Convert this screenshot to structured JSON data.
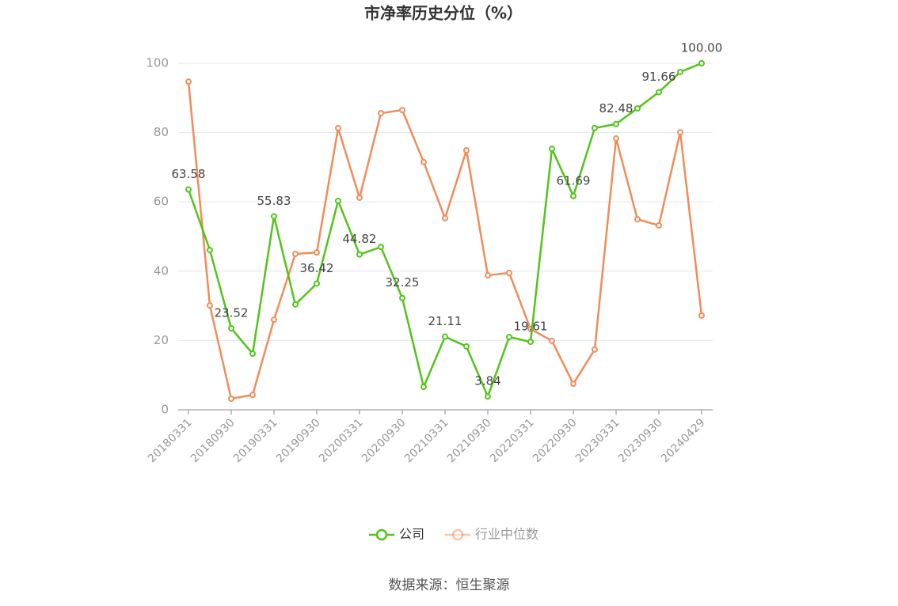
{
  "chart_data": {
    "type": "line",
    "title": "市净率历史分位（%）",
    "categories": [
      "20180331",
      null,
      "20180930",
      null,
      "20190331",
      null,
      "20190930",
      null,
      "20200331",
      null,
      "20200930",
      null,
      "20210331",
      null,
      "20210930",
      null,
      "20220331",
      null,
      "20220930",
      null,
      "20230331",
      null,
      "20230930",
      null,
      "20240429"
    ],
    "series": [
      {
        "name": "公司",
        "color": "#52c41a",
        "values": [
          63.58,
          46.1,
          23.52,
          16.2,
          55.83,
          30.4,
          36.42,
          60.3,
          44.82,
          47.0,
          32.25,
          6.6,
          21.11,
          18.3,
          3.84,
          21.0,
          19.61,
          75.3,
          61.69,
          81.3,
          82.48,
          87.0,
          91.66,
          97.5,
          100
        ],
        "value_labels": [
          "63.58",
          null,
          "23.52",
          null,
          "55.83",
          null,
          "36.42",
          null,
          "44.82",
          null,
          "32.25",
          null,
          "21.11",
          null,
          "3.84",
          null,
          "19.61",
          null,
          "61.69",
          null,
          "82.48",
          null,
          "91.66",
          null,
          "100.00"
        ]
      },
      {
        "name": "行业中位数",
        "color": "#f08c5a",
        "values": [
          94.7,
          30.1,
          3.2,
          4.3,
          26.0,
          45.0,
          45.4,
          81.3,
          61.2,
          85.6,
          86.5,
          71.5,
          55.3,
          74.9,
          38.8,
          39.5,
          23.3,
          19.9,
          7.5,
          17.4,
          78.3,
          55.0,
          53.2,
          80.1,
          27.2
        ]
      }
    ],
    "ylim": [
      0,
      100
    ],
    "yticks": [
      0,
      20,
      40,
      60,
      80,
      100
    ],
    "grid": true,
    "source": "数据来源：恒生聚源"
  }
}
